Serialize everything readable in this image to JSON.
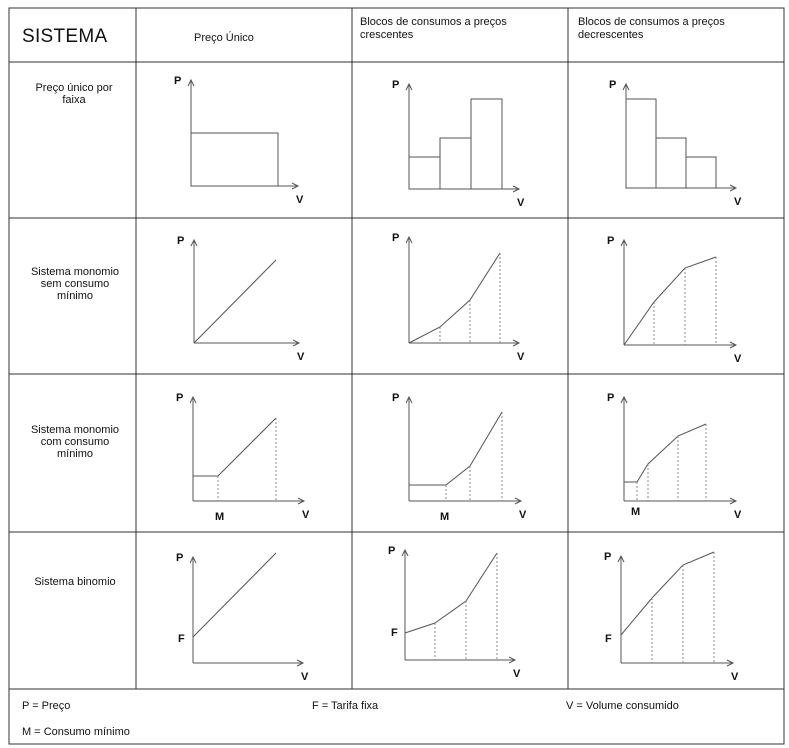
{
  "header": {
    "corner": "SISTEMA",
    "columns": [
      "Preço Único",
      "Blocos de consumos a preços crescentes",
      "Blocos de consumos a preços decrescentes"
    ]
  },
  "rows": [
    {
      "label": "Preço único por faixa"
    },
    {
      "label": "Sistema monomio sem consumo mínimo"
    },
    {
      "label": "Sistema monomio com consumo mínimo"
    },
    {
      "label": "Sistema binomio"
    }
  ],
  "axis_labels": {
    "y": "P",
    "x": "V",
    "min_consumption_marker": "M",
    "fixed_fee_marker": "F"
  },
  "legend": {
    "p": "P = Preço",
    "f": "F = Tarifa fixa",
    "v": "V = Volume consumido",
    "m": "M = Consumo mínimo"
  },
  "colors": {
    "line": "#555555",
    "grid": "#888888",
    "text": "#111111"
  }
}
